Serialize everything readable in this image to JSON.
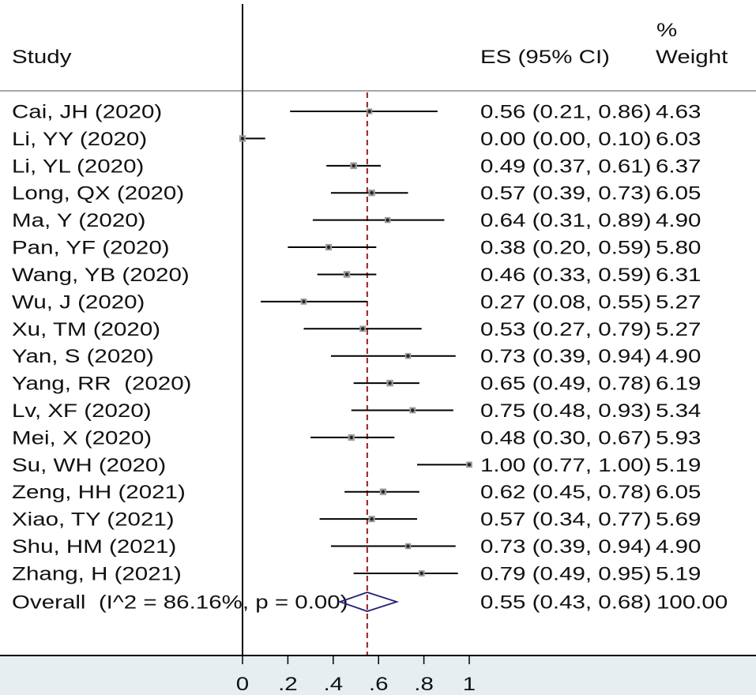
{
  "chart_data": {
    "type": "scatter",
    "header": {
      "study": "Study",
      "es_ci": "ES (95% CI)",
      "weight_percent": "%",
      "weight": "Weight"
    },
    "xlim": [
      0,
      1
    ],
    "null_line": 0,
    "x_ticks": [
      0,
      0.2,
      0.4,
      0.6,
      0.8,
      1
    ],
    "x_tick_labels": [
      "0",
      ".2",
      ".4",
      ".6",
      ".8",
      "1"
    ],
    "studies": [
      {
        "label": "Cai, JH (2020)",
        "es": 0.56,
        "lo": 0.21,
        "hi": 0.86,
        "ci_text": "0.56 (0.21, 0.86)",
        "weight": "4.63"
      },
      {
        "label": "Li, YY (2020)",
        "es": 0.0,
        "lo": 0.0,
        "hi": 0.1,
        "ci_text": "0.00 (0.00, 0.10)",
        "weight": "6.03"
      },
      {
        "label": "Li, YL (2020)",
        "es": 0.49,
        "lo": 0.37,
        "hi": 0.61,
        "ci_text": "0.49 (0.37, 0.61)",
        "weight": "6.37"
      },
      {
        "label": "Long, QX (2020)",
        "es": 0.57,
        "lo": 0.39,
        "hi": 0.73,
        "ci_text": "0.57 (0.39, 0.73)",
        "weight": "6.05"
      },
      {
        "label": "Ma, Y (2020)",
        "es": 0.64,
        "lo": 0.31,
        "hi": 0.89,
        "ci_text": "0.64 (0.31, 0.89)",
        "weight": "4.90"
      },
      {
        "label": "Pan, YF (2020)",
        "es": 0.38,
        "lo": 0.2,
        "hi": 0.59,
        "ci_text": "0.38 (0.20, 0.59)",
        "weight": "5.80"
      },
      {
        "label": "Wang, YB (2020)",
        "es": 0.46,
        "lo": 0.33,
        "hi": 0.59,
        "ci_text": "0.46 (0.33, 0.59)",
        "weight": "6.31"
      },
      {
        "label": "Wu, J (2020)",
        "es": 0.27,
        "lo": 0.08,
        "hi": 0.55,
        "ci_text": "0.27 (0.08, 0.55)",
        "weight": "5.27"
      },
      {
        "label": "Xu, TM (2020)",
        "es": 0.53,
        "lo": 0.27,
        "hi": 0.79,
        "ci_text": "0.53 (0.27, 0.79)",
        "weight": "5.27"
      },
      {
        "label": "Yan, S (2020)",
        "es": 0.73,
        "lo": 0.39,
        "hi": 0.94,
        "ci_text": "0.73 (0.39, 0.94)",
        "weight": "4.90"
      },
      {
        "label": "Yang, RR  (2020)",
        "es": 0.65,
        "lo": 0.49,
        "hi": 0.78,
        "ci_text": "0.65 (0.49, 0.78)",
        "weight": "6.19"
      },
      {
        "label": "Lv, XF (2020)",
        "es": 0.75,
        "lo": 0.48,
        "hi": 0.93,
        "ci_text": "0.75 (0.48, 0.93)",
        "weight": "5.34"
      },
      {
        "label": "Mei, X (2020)",
        "es": 0.48,
        "lo": 0.3,
        "hi": 0.67,
        "ci_text": "0.48 (0.30, 0.67)",
        "weight": "5.93"
      },
      {
        "label": "Su, WH (2020)",
        "es": 1.0,
        "lo": 0.77,
        "hi": 1.0,
        "ci_text": "1.00 (0.77, 1.00)",
        "weight": "5.19"
      },
      {
        "label": "Zeng, HH (2021)",
        "es": 0.62,
        "lo": 0.45,
        "hi": 0.78,
        "ci_text": "0.62 (0.45, 0.78)",
        "weight": "6.05"
      },
      {
        "label": "Xiao, TY (2021)",
        "es": 0.57,
        "lo": 0.34,
        "hi": 0.77,
        "ci_text": "0.57 (0.34, 0.77)",
        "weight": "5.69"
      },
      {
        "label": "Shu, HM (2021)",
        "es": 0.73,
        "lo": 0.39,
        "hi": 0.94,
        "ci_text": "0.73 (0.39, 0.94)",
        "weight": "4.90"
      },
      {
        "label": "Zhang, H (2021)",
        "es": 0.79,
        "lo": 0.49,
        "hi": 0.95,
        "ci_text": "0.79 (0.49, 0.95)",
        "weight": "5.19"
      }
    ],
    "overall": {
      "label": "Overall  (I^2 = 86.16%, p = 0.00)",
      "es": 0.55,
      "lo": 0.43,
      "hi": 0.68,
      "ci_text": "0.55 (0.43, 0.68)",
      "weight": "100.00"
    },
    "colors": {
      "text": "#111111",
      "ci_line": "#000000",
      "marker_box": "#9c9c9c",
      "marker_dot": "#222222",
      "overall_line": "#9e1b1b",
      "diamond": "#23237a",
      "null_line": "#000000",
      "axis": "#000000",
      "header_rule": "#a6a6a6",
      "axis_band": "#e6eef2"
    }
  }
}
